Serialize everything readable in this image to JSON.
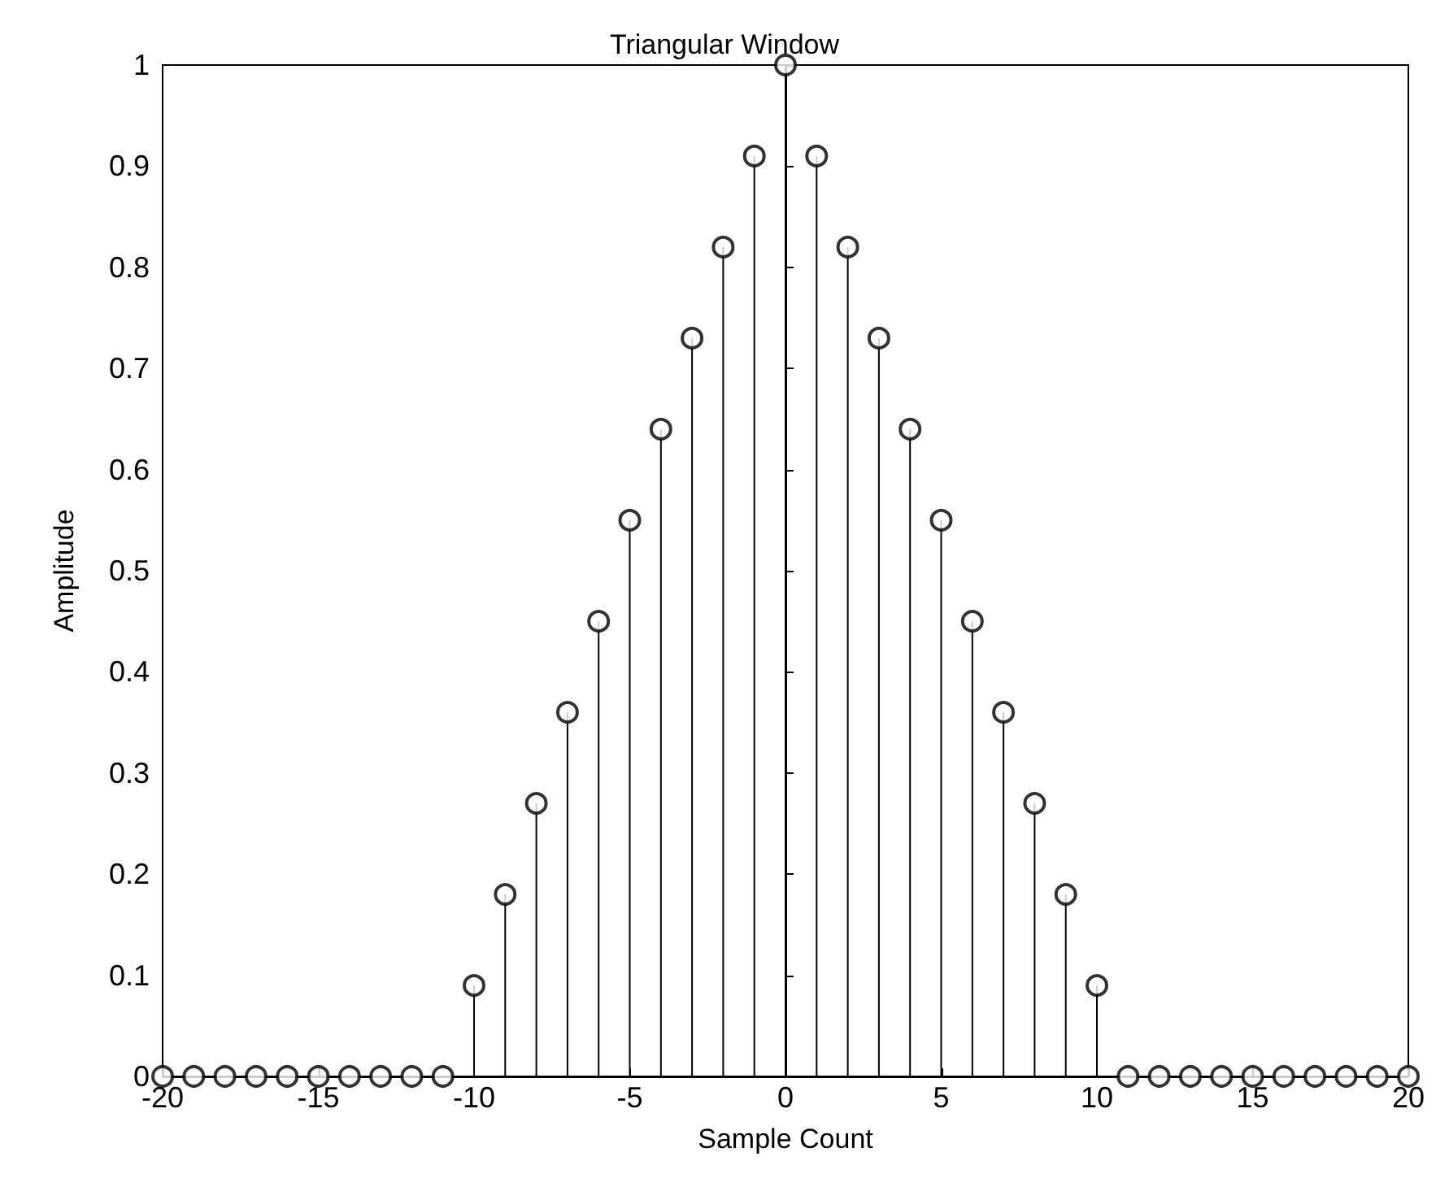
{
  "chart_data": {
    "type": "lollipop",
    "title": "Triangular Window",
    "xlabel": "Sample Count",
    "ylabel": "Amplitude",
    "x": [
      -20,
      -19,
      -18,
      -17,
      -16,
      -15,
      -14,
      -13,
      -12,
      -11,
      -10,
      -9,
      -8,
      -7,
      -6,
      -5,
      -4,
      -3,
      -2,
      -1,
      0,
      1,
      2,
      3,
      4,
      5,
      6,
      7,
      8,
      9,
      10,
      11,
      12,
      13,
      14,
      15,
      16,
      17,
      18,
      19,
      20
    ],
    "values": [
      0,
      0,
      0,
      0,
      0,
      0,
      0,
      0,
      0,
      0,
      0.09,
      0.18,
      0.27,
      0.36,
      0.45,
      0.55,
      0.64,
      0.73,
      0.82,
      0.91,
      1,
      0.91,
      0.82,
      0.73,
      0.64,
      0.55,
      0.45,
      0.36,
      0.27,
      0.18,
      0.09,
      0,
      0,
      0,
      0,
      0,
      0,
      0,
      0,
      0,
      0
    ],
    "color": "#000000",
    "marker": "circle",
    "xlim": [
      -20,
      20
    ],
    "xticks": [
      -20,
      -15,
      -10,
      -5,
      0,
      5,
      10,
      15,
      20
    ],
    "ylim": [
      0,
      1
    ],
    "yticks": [
      0,
      0.1,
      0.2,
      0.3,
      0.4,
      0.5,
      0.6,
      0.7,
      0.8,
      0.9,
      1
    ]
  }
}
